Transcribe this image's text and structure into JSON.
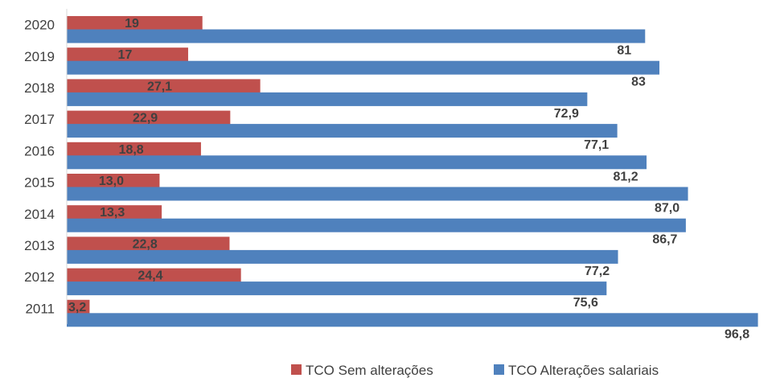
{
  "chart_data": {
    "type": "bar",
    "orientation": "horizontal",
    "categories": [
      "2011",
      "2012",
      "2013",
      "2014",
      "2015",
      "2016",
      "2017",
      "2018",
      "2019",
      "2020"
    ],
    "series": [
      {
        "name": "TCO Sem alterações",
        "color": "#c0504d",
        "values": [
          3.2,
          24.4,
          22.8,
          13.3,
          13.0,
          18.8,
          22.9,
          27.1,
          17,
          19
        ],
        "labels": [
          "3,2",
          "24,4",
          "22,8",
          "13,3",
          "13,0",
          "18,8",
          "22,9",
          "27,1",
          "17",
          "19"
        ]
      },
      {
        "name": "TCO Alterações salariais",
        "color": "#4f81bd",
        "values": [
          96.8,
          75.6,
          77.2,
          86.7,
          87.0,
          81.2,
          77.1,
          72.9,
          83,
          81
        ],
        "labels": [
          "96,8",
          "75,6",
          "77,2",
          "86,7",
          "87,0",
          "81,2",
          "77,1",
          "72,9",
          "83",
          "81"
        ]
      }
    ],
    "xlim": [
      0,
      100
    ],
    "grid": false,
    "legend_position": "bottom-right"
  }
}
